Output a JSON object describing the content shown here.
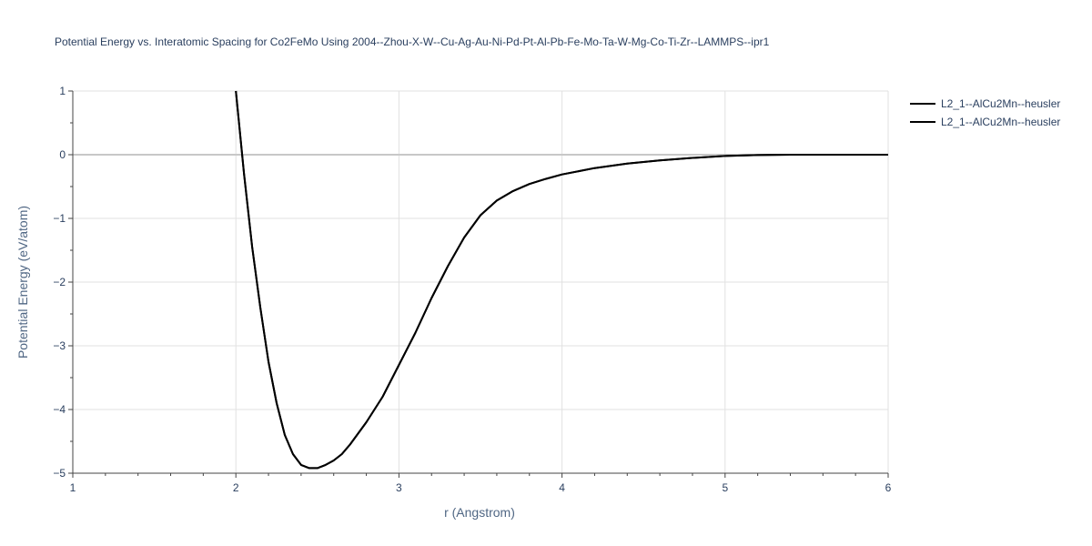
{
  "chart_data": {
    "type": "line",
    "title": "Potential Energy vs. Interatomic Spacing for Co2FeMo Using 2004--Zhou-X-W--Cu-Ag-Au-Ni-Pd-Pt-Al-Pb-Fe-Mo-Ta-W-Mg-Co-Ti-Zr--LAMMPS--ipr1",
    "xlabel": "r (Angstrom)",
    "ylabel": "Potential Energy (eV/atom)",
    "xlim": [
      1,
      6
    ],
    "ylim": [
      -5,
      1
    ],
    "x_ticks": [
      "1",
      "2",
      "3",
      "4",
      "5",
      "6"
    ],
    "y_ticks": [
      "1",
      "0",
      "−1",
      "−2",
      "−3",
      "−4",
      "−5"
    ],
    "grid": true,
    "legend_position": "top-right",
    "line_color": "#000000",
    "series": [
      {
        "name": "L2_1--AlCu2Mn--heusler",
        "x": [
          2.0,
          2.05,
          2.1,
          2.15,
          2.2,
          2.25,
          2.3,
          2.35,
          2.4,
          2.45,
          2.5,
          2.55,
          2.6,
          2.65,
          2.7,
          2.8,
          2.9,
          3.0,
          3.1,
          3.2,
          3.3,
          3.4,
          3.5,
          3.6,
          3.7,
          3.8,
          3.9,
          4.0,
          4.2,
          4.4,
          4.6,
          4.8,
          5.0,
          5.2,
          5.4,
          5.6,
          5.8,
          6.0
        ],
        "y": [
          1.0,
          -0.3,
          -1.45,
          -2.4,
          -3.25,
          -3.9,
          -4.4,
          -4.7,
          -4.87,
          -4.92,
          -4.92,
          -4.87,
          -4.8,
          -4.7,
          -4.55,
          -4.2,
          -3.8,
          -3.3,
          -2.8,
          -2.25,
          -1.75,
          -1.3,
          -0.95,
          -0.72,
          -0.57,
          -0.46,
          -0.38,
          -0.31,
          -0.21,
          -0.14,
          -0.09,
          -0.05,
          -0.02,
          -0.005,
          0.0,
          0.0,
          0.0,
          0.0
        ]
      },
      {
        "name": "L2_1--AlCu2Mn--heusler",
        "x": [
          2.0,
          2.05,
          2.1,
          2.15,
          2.2,
          2.25,
          2.3,
          2.35,
          2.4,
          2.45,
          2.5,
          2.55,
          2.6,
          2.65,
          2.7,
          2.8,
          2.9,
          3.0,
          3.1,
          3.2,
          3.3,
          3.4,
          3.5,
          3.6,
          3.7,
          3.8,
          3.9,
          4.0,
          4.2,
          4.4,
          4.6,
          4.8,
          5.0,
          5.2,
          5.4,
          5.6,
          5.8,
          6.0
        ],
        "y": [
          1.0,
          -0.3,
          -1.45,
          -2.4,
          -3.25,
          -3.9,
          -4.4,
          -4.7,
          -4.87,
          -4.92,
          -4.92,
          -4.87,
          -4.8,
          -4.7,
          -4.55,
          -4.2,
          -3.8,
          -3.3,
          -2.8,
          -2.25,
          -1.75,
          -1.3,
          -0.95,
          -0.72,
          -0.57,
          -0.46,
          -0.38,
          -0.31,
          -0.21,
          -0.14,
          -0.09,
          -0.05,
          -0.02,
          -0.005,
          0.0,
          0.0,
          0.0,
          0.0
        ]
      }
    ]
  }
}
